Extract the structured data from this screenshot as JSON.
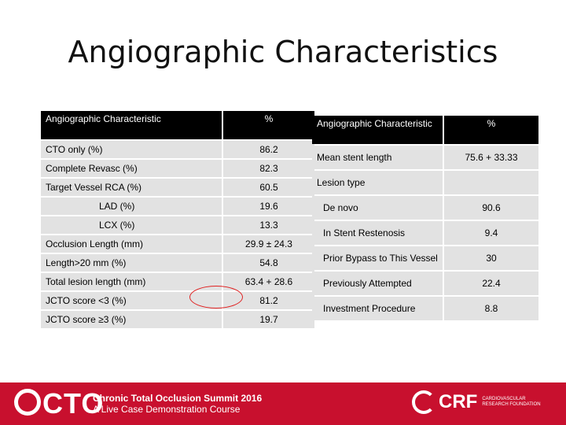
{
  "title": "Angiographic Characteristics",
  "left_table": {
    "header": [
      "Angiographic Characteristic",
      "%"
    ],
    "rows": [
      [
        "CTO only (%)",
        "86.2"
      ],
      [
        "Complete Revasc (%)",
        "82.3"
      ],
      [
        "Target Vessel RCA (%)",
        "60.5"
      ],
      [
        "LAD (%)",
        "19.6"
      ],
      [
        "LCX (%)",
        "13.3"
      ],
      [
        "Occlusion Length (mm)",
        "29.9 ± 24.3"
      ],
      [
        "Length>20 mm (%)",
        "54.8"
      ],
      [
        "Total lesion length (mm)",
        "63.4 + 28.6"
      ],
      [
        "JCTO score <3 (%)",
        "81.2"
      ],
      [
        "JCTO score ≥3 (%)",
        "19.7"
      ]
    ]
  },
  "right_table": {
    "header": [
      "Angiographic Characteristic",
      "%"
    ],
    "rows": [
      [
        "Mean stent length",
        "75.6 + 33.33"
      ],
      [
        "Lesion type",
        ""
      ],
      [
        "De novo",
        "90.6"
      ],
      [
        "In Stent Restenosis",
        "9.4"
      ],
      [
        "Prior Bypass to This Vessel",
        "30"
      ],
      [
        "Previously Attempted",
        "22.4"
      ],
      [
        "Investment Procedure",
        "8.8"
      ]
    ]
  },
  "footer": {
    "logo": "CTO",
    "line1": "Chronic Total Occlusion Summit 2016",
    "line2": "A Live Case Demonstration Course",
    "crf_name": "CRF",
    "crf_sub1": "CARDIOVASCULAR",
    "crf_sub2": "RESEARCH FOUNDATION",
    "brand_color": "#c8102e"
  }
}
